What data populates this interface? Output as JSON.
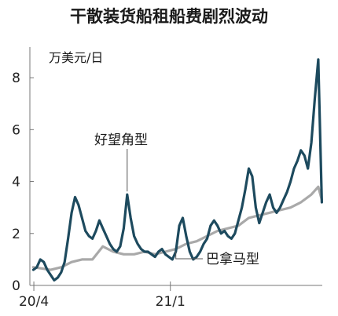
{
  "chart_data": {
    "type": "line",
    "title": "干散装货船租船费剧烈波动",
    "unit_label": "万美元/日",
    "xlabel": "",
    "ylabel": "",
    "x_ticks": [
      "20/4",
      "21/1"
    ],
    "y_ticks": [
      0,
      2,
      4,
      6,
      8
    ],
    "ylim": [
      0,
      9
    ],
    "grid": false,
    "colors": {
      "cape": "#1d4a5e",
      "panamax": "#a9a9a9",
      "axis": "#777777"
    },
    "series": [
      {
        "name": "好望角型",
        "x": [
          "2020-03-31",
          "2020-04-07",
          "2020-04-14",
          "2020-04-21",
          "2020-04-28",
          "2020-05-05",
          "2020-05-12",
          "2020-05-19",
          "2020-05-26",
          "2020-06-02",
          "2020-06-09",
          "2020-06-16",
          "2020-06-23",
          "2020-06-30",
          "2020-07-07",
          "2020-07-14",
          "2020-07-21",
          "2020-07-28",
          "2020-08-04",
          "2020-08-11",
          "2020-08-18",
          "2020-08-25",
          "2020-09-01",
          "2020-09-08",
          "2020-09-15",
          "2020-09-22",
          "2020-09-29",
          "2020-10-06",
          "2020-10-13",
          "2020-10-20",
          "2020-10-27",
          "2020-11-03",
          "2020-11-10",
          "2020-11-17",
          "2020-11-24",
          "2020-12-01",
          "2020-12-08",
          "2020-12-15",
          "2020-12-22",
          "2020-12-29",
          "2021-01-05",
          "2021-01-12",
          "2021-01-19",
          "2021-01-26",
          "2021-02-02",
          "2021-02-09",
          "2021-02-16",
          "2021-02-23",
          "2021-03-02",
          "2021-03-09",
          "2021-03-16",
          "2021-03-23",
          "2021-03-30",
          "2021-04-06",
          "2021-04-13",
          "2021-04-20",
          "2021-04-27",
          "2021-05-04",
          "2021-05-11",
          "2021-05-18",
          "2021-05-25",
          "2021-06-01",
          "2021-06-08",
          "2021-06-15",
          "2021-06-22",
          "2021-06-29",
          "2021-07-06",
          "2021-07-13",
          "2021-07-20",
          "2021-07-27",
          "2021-08-03",
          "2021-08-10",
          "2021-08-17",
          "2021-08-24",
          "2021-08-31",
          "2021-09-07",
          "2021-09-14",
          "2021-09-21",
          "2021-09-28",
          "2021-10-05",
          "2021-10-12",
          "2021-10-19",
          "2021-10-26",
          "2021-11-02"
        ],
        "y": [
          0.6,
          0.7,
          1.0,
          0.9,
          0.6,
          0.4,
          0.2,
          0.3,
          0.5,
          0.9,
          1.8,
          2.8,
          3.4,
          3.1,
          2.6,
          2.1,
          1.9,
          1.8,
          2.1,
          2.5,
          2.2,
          1.9,
          1.6,
          1.4,
          1.3,
          1.5,
          2.2,
          3.5,
          2.6,
          1.9,
          1.6,
          1.4,
          1.3,
          1.3,
          1.2,
          1.1,
          1.3,
          1.4,
          1.2,
          1.1,
          1.0,
          1.3,
          2.3,
          2.6,
          1.9,
          1.3,
          1.0,
          1.1,
          1.3,
          1.6,
          1.8,
          2.3,
          2.5,
          2.3,
          2.0,
          2.1,
          1.9,
          1.8,
          2.0,
          2.5,
          3.0,
          3.7,
          4.5,
          4.2,
          3.0,
          2.4,
          2.8,
          3.2,
          3.5,
          3.0,
          2.8,
          3.0,
          3.3,
          3.6,
          4.0,
          4.5,
          4.8,
          5.2,
          5.0,
          4.5,
          5.5,
          7.2,
          8.7,
          3.2
        ]
      },
      {
        "name": "巴拿马型",
        "x": [
          "2020-03-31",
          "2020-05-05",
          "2020-05-26",
          "2020-06-16",
          "2020-07-07",
          "2020-07-28",
          "2020-08-18",
          "2020-09-08",
          "2020-09-29",
          "2020-10-20",
          "2020-11-10",
          "2020-12-01",
          "2020-12-22",
          "2021-01-12",
          "2021-02-02",
          "2021-02-23",
          "2021-03-16",
          "2021-04-06",
          "2021-04-27",
          "2021-05-18",
          "2021-06-08",
          "2021-06-29",
          "2021-07-20",
          "2021-08-10",
          "2021-08-31",
          "2021-09-21",
          "2021-10-12",
          "2021-10-26",
          "2021-11-02"
        ],
        "y": [
          0.7,
          0.6,
          0.7,
          0.9,
          1.0,
          1.0,
          1.5,
          1.3,
          1.2,
          1.2,
          1.3,
          1.2,
          1.3,
          1.4,
          1.6,
          1.7,
          1.9,
          2.1,
          2.2,
          2.3,
          2.6,
          2.7,
          2.8,
          2.9,
          3.0,
          3.2,
          3.5,
          3.8,
          3.3
        ]
      }
    ]
  }
}
